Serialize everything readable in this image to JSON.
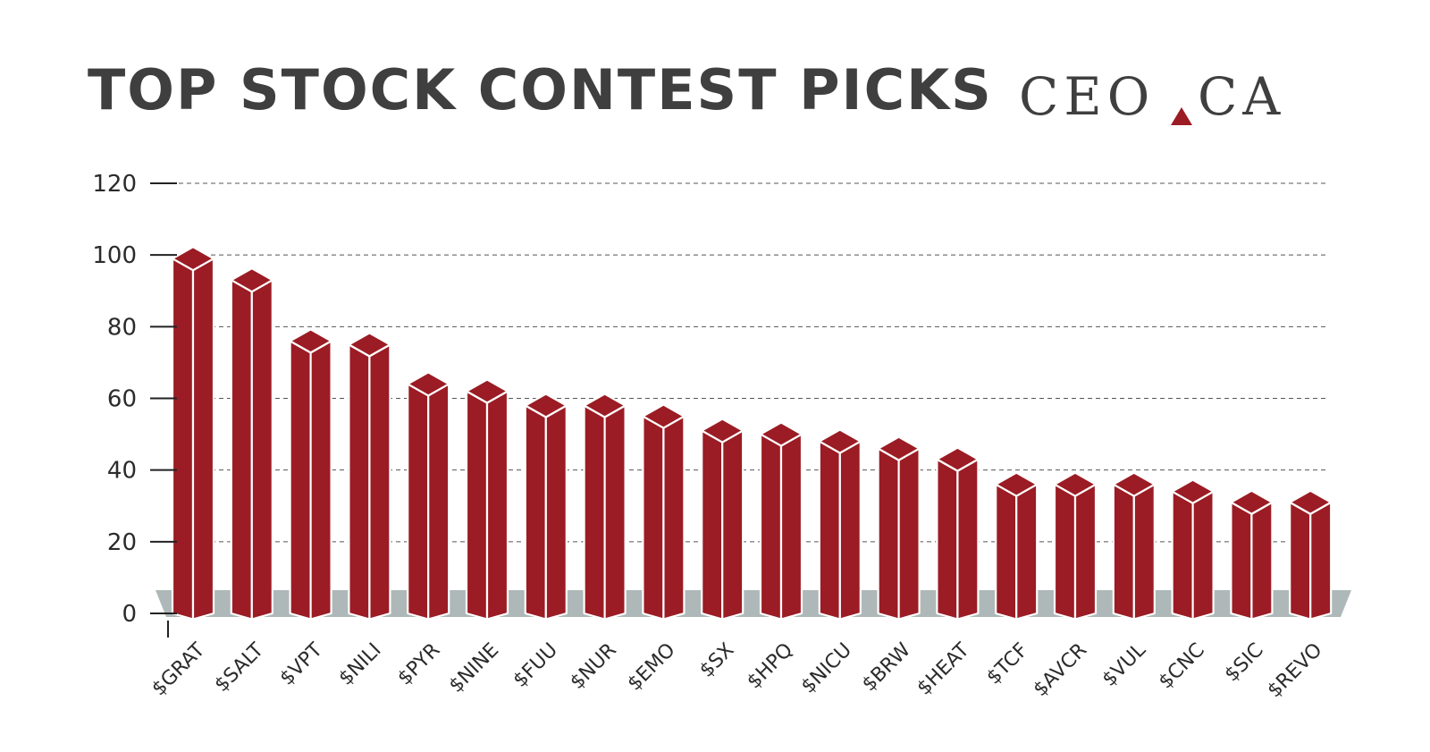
{
  "title": "TOP STOCK CONTEST PICKS",
  "logo": {
    "left": "CEO",
    "right": "CA",
    "mark_color": "#9b1c24"
  },
  "colors": {
    "bar": "#9b1c24",
    "base": "#aeb8b8",
    "grid": "#555555",
    "text": "#2b2b2b"
  },
  "chart_data": {
    "type": "bar",
    "title": "TOP STOCK CONTEST PICKS",
    "xlabel": "",
    "ylabel": "",
    "ylim": [
      0,
      120
    ],
    "yticks": [
      0,
      20,
      40,
      60,
      80,
      100,
      120
    ],
    "grid": true,
    "categories": [
      "$GRAT",
      "$SALT",
      "$VPT",
      "$NILI",
      "$PYR",
      "$NINE",
      "$FUU",
      "$NUR",
      "$EMO",
      "$SX",
      "$HPQ",
      "$NICU",
      "$BRW",
      "$HEAT",
      "$TCF",
      "$AVCR",
      "$VUL",
      "$CNC",
      "$SIC",
      "$REVO"
    ],
    "values": [
      99,
      93,
      76,
      75,
      64,
      62,
      58,
      58,
      55,
      51,
      50,
      48,
      46,
      43,
      36,
      36,
      36,
      34,
      31,
      31
    ]
  }
}
